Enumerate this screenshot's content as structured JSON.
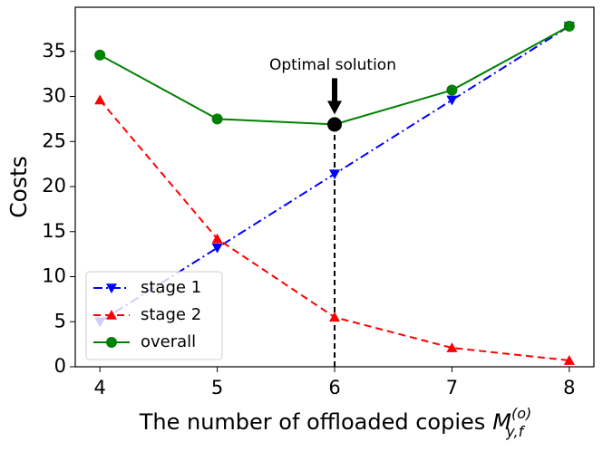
{
  "chart_data": {
    "type": "line",
    "x": [
      4,
      5,
      6,
      7,
      8
    ],
    "xlim": [
      3.79,
      8.21
    ],
    "xticks": [
      4,
      5,
      6,
      7,
      8
    ],
    "ylim": [
      0,
      39.9
    ],
    "yticks": [
      0,
      5,
      10,
      15,
      20,
      25,
      30,
      35
    ],
    "y_label": "Costs",
    "x_label": "The number of offloaded copies",
    "x_label_math": {
      "base": "M",
      "sub": "y,f",
      "sup": "(o)"
    },
    "legend": "lower left",
    "series": [
      {
        "name": "stage 1",
        "color": "#0000ff",
        "dash": "dashdot",
        "marker": "triangle-down",
        "values": [
          5.0,
          13.2,
          21.4,
          29.6,
          37.8
        ]
      },
      {
        "name": "stage 2",
        "color": "#ff0000",
        "dash": "dashed",
        "marker": "triangle-up",
        "values": [
          29.6,
          14.2,
          5.5,
          2.1,
          0.7
        ]
      },
      {
        "name": "overall",
        "color": "#008000",
        "dash": "solid",
        "marker": "circle",
        "values": [
          34.6,
          27.5,
          26.9,
          30.7,
          37.8
        ]
      }
    ],
    "annotation": {
      "text": "Optimal solution",
      "x": 6,
      "y": 26.9
    }
  }
}
